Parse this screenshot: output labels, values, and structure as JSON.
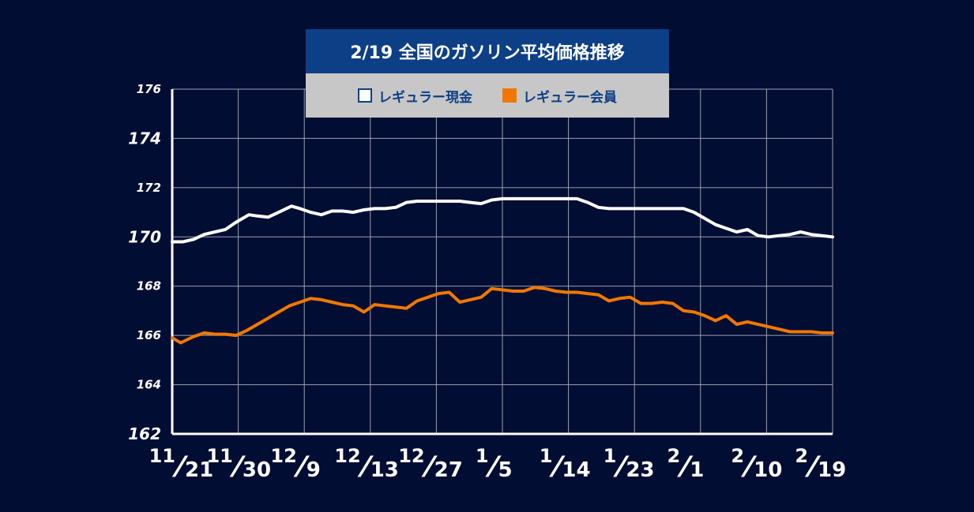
{
  "chart_data": {
    "type": "line",
    "title": "2/19 全国のガソリン平均価格推移",
    "ylim": [
      162,
      176
    ],
    "yticks": [
      "162",
      "164",
      "166",
      "168",
      "170",
      "172",
      "174",
      "176"
    ],
    "xticks": [
      {
        "num": "11",
        "den": "21"
      },
      {
        "num": "11",
        "den": "30"
      },
      {
        "num": "12",
        "den": "9"
      },
      {
        "num": "12",
        "den": "13"
      },
      {
        "num": "12",
        "den": "27"
      },
      {
        "num": "1",
        "den": "5"
      },
      {
        "num": "1",
        "den": "14"
      },
      {
        "num": "1",
        "den": "23"
      },
      {
        "num": "2",
        "den": "1"
      },
      {
        "num": "2",
        "den": "10"
      },
      {
        "num": "2",
        "den": "19"
      }
    ],
    "grid": true,
    "legend_position": "top",
    "series": [
      {
        "name": "レギュラー現金",
        "color": "#ffffff",
        "points": [
          [
            0,
            169.8
          ],
          [
            0.5,
            169.8
          ],
          [
            1,
            169.9
          ],
          [
            1.5,
            170.1
          ],
          [
            2,
            170.2
          ],
          [
            2.5,
            170.3
          ],
          [
            3,
            170.6
          ],
          [
            3.6,
            170.9
          ],
          [
            4,
            170.85
          ],
          [
            4.5,
            170.8
          ],
          [
            5,
            171.0
          ],
          [
            5.6,
            171.25
          ],
          [
            6,
            171.15
          ],
          [
            6.5,
            171.0
          ],
          [
            7,
            170.9
          ],
          [
            7.5,
            171.05
          ],
          [
            8,
            171.05
          ],
          [
            8.5,
            171.0
          ],
          [
            9,
            171.1
          ],
          [
            9.5,
            171.15
          ],
          [
            10,
            171.15
          ],
          [
            10.5,
            171.2
          ],
          [
            11,
            171.4
          ],
          [
            11.5,
            171.45
          ],
          [
            12,
            171.45
          ],
          [
            12.5,
            171.45
          ],
          [
            13,
            171.45
          ],
          [
            13.5,
            171.45
          ],
          [
            14,
            171.4
          ],
          [
            14.5,
            171.35
          ],
          [
            15,
            171.5
          ],
          [
            15.5,
            171.55
          ],
          [
            16,
            171.55
          ],
          [
            16.5,
            171.55
          ],
          [
            17,
            171.55
          ],
          [
            17.5,
            171.55
          ],
          [
            18,
            171.55
          ],
          [
            18.5,
            171.55
          ],
          [
            19,
            171.55
          ],
          [
            19.5,
            171.4
          ],
          [
            20,
            171.2
          ],
          [
            20.5,
            171.15
          ],
          [
            21,
            171.15
          ],
          [
            21.5,
            171.15
          ],
          [
            22,
            171.15
          ],
          [
            22.5,
            171.15
          ],
          [
            23,
            171.15
          ],
          [
            23.5,
            171.15
          ],
          [
            24,
            171.15
          ],
          [
            24.5,
            171.0
          ],
          [
            25,
            170.75
          ],
          [
            25.5,
            170.5
          ],
          [
            26,
            170.35
          ],
          [
            26.5,
            170.2
          ],
          [
            27,
            170.3
          ],
          [
            27.5,
            170.05
          ],
          [
            28,
            170.0
          ],
          [
            28.5,
            170.05
          ],
          [
            29,
            170.1
          ],
          [
            29.5,
            170.2
          ],
          [
            30,
            170.1
          ],
          [
            30.5,
            170.05
          ],
          [
            31,
            170.0
          ]
        ]
      },
      {
        "name": "レギュラー会員",
        "color": "#f07800",
        "points": [
          [
            0,
            165.9
          ],
          [
            0.4,
            165.7
          ],
          [
            1,
            165.95
          ],
          [
            1.5,
            166.1
          ],
          [
            2,
            166.05
          ],
          [
            2.5,
            166.05
          ],
          [
            3,
            166.0
          ],
          [
            3.5,
            166.2
          ],
          [
            4,
            166.45
          ],
          [
            4.5,
            166.7
          ],
          [
            5,
            166.95
          ],
          [
            5.5,
            167.2
          ],
          [
            6,
            167.35
          ],
          [
            6.5,
            167.5
          ],
          [
            7,
            167.45
          ],
          [
            7.5,
            167.35
          ],
          [
            8,
            167.25
          ],
          [
            8.5,
            167.2
          ],
          [
            9,
            166.95
          ],
          [
            9.5,
            167.25
          ],
          [
            10,
            167.2
          ],
          [
            10.5,
            167.15
          ],
          [
            11,
            167.1
          ],
          [
            11.5,
            167.4
          ],
          [
            12,
            167.55
          ],
          [
            12.5,
            167.7
          ],
          [
            13,
            167.75
          ],
          [
            13.5,
            167.35
          ],
          [
            14,
            167.45
          ],
          [
            14.5,
            167.55
          ],
          [
            15,
            167.9
          ],
          [
            15.5,
            167.85
          ],
          [
            16,
            167.8
          ],
          [
            16.5,
            167.8
          ],
          [
            17,
            167.95
          ],
          [
            17.5,
            167.9
          ],
          [
            18,
            167.8
          ],
          [
            18.5,
            167.75
          ],
          [
            19,
            167.75
          ],
          [
            19.5,
            167.7
          ],
          [
            20,
            167.65
          ],
          [
            20.5,
            167.4
          ],
          [
            21,
            167.5
          ],
          [
            21.5,
            167.55
          ],
          [
            22,
            167.3
          ],
          [
            22.5,
            167.3
          ],
          [
            23,
            167.35
          ],
          [
            23.5,
            167.3
          ],
          [
            24,
            167.0
          ],
          [
            24.5,
            166.95
          ],
          [
            25,
            166.8
          ],
          [
            25.5,
            166.6
          ],
          [
            26,
            166.8
          ],
          [
            26.5,
            166.45
          ],
          [
            27,
            166.55
          ],
          [
            27.5,
            166.45
          ],
          [
            28,
            166.35
          ],
          [
            28.5,
            166.25
          ],
          [
            29,
            166.15
          ],
          [
            29.5,
            166.15
          ],
          [
            30,
            166.15
          ],
          [
            30.5,
            166.1
          ],
          [
            31,
            166.1
          ]
        ]
      }
    ]
  },
  "colors": {
    "background": "#020d33",
    "grid": "#9aa0b0",
    "title_bg": "#0d3f86",
    "legend_bg": "#c7c7c7"
  }
}
